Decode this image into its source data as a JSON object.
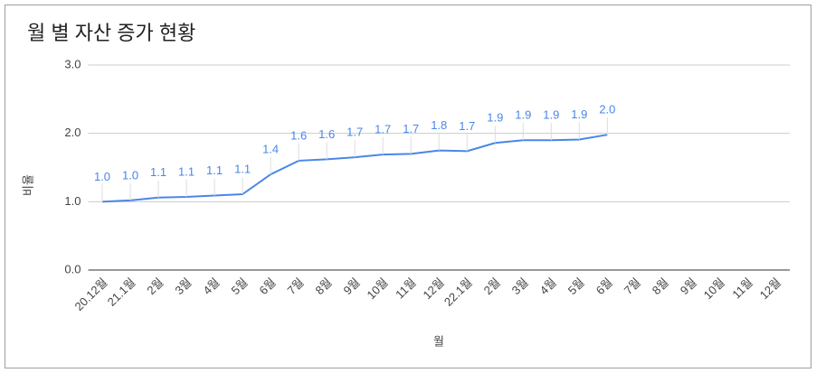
{
  "chart_data": {
    "type": "line",
    "title": "월 별 자산 증가 현황",
    "x_label": "월",
    "y_label": "비율",
    "categories": [
      "20.12월",
      "21.1월",
      "2월",
      "3월",
      "4월",
      "5월",
      "6월",
      "7월",
      "8월",
      "9월",
      "10월",
      "11월",
      "12월",
      "22.1월",
      "2월",
      "3월",
      "4월",
      "5월",
      "6월",
      "7월",
      "8월",
      "9월",
      "10월",
      "11월",
      "12월"
    ],
    "series": [
      {
        "name": "비율",
        "color": "#4a86e8",
        "values": [
          1.0,
          1.02,
          1.06,
          1.07,
          1.09,
          1.11,
          1.4,
          1.6,
          1.62,
          1.65,
          1.69,
          1.7,
          1.75,
          1.74,
          1.86,
          1.9,
          1.9,
          1.91,
          1.98,
          null,
          null,
          null,
          null,
          null,
          null
        ],
        "value_labels": [
          "1.0",
          "1.0",
          "1.1",
          "1.1",
          "1.1",
          "1.1",
          "1.4",
          "1.6",
          "1.6",
          "1.7",
          "1.7",
          "1.7",
          "1.8",
          "1.7",
          "1.9",
          "1.9",
          "1.9",
          "1.9",
          "2.0",
          null,
          null,
          null,
          null,
          null,
          null
        ]
      }
    ],
    "ylim": [
      0,
      3
    ],
    "yticks": [
      {
        "value": 0,
        "label": "0.0"
      },
      {
        "value": 1,
        "label": "1.0"
      },
      {
        "value": 2,
        "label": "2.0"
      },
      {
        "value": 3,
        "label": "3.0"
      }
    ],
    "grid": true
  }
}
